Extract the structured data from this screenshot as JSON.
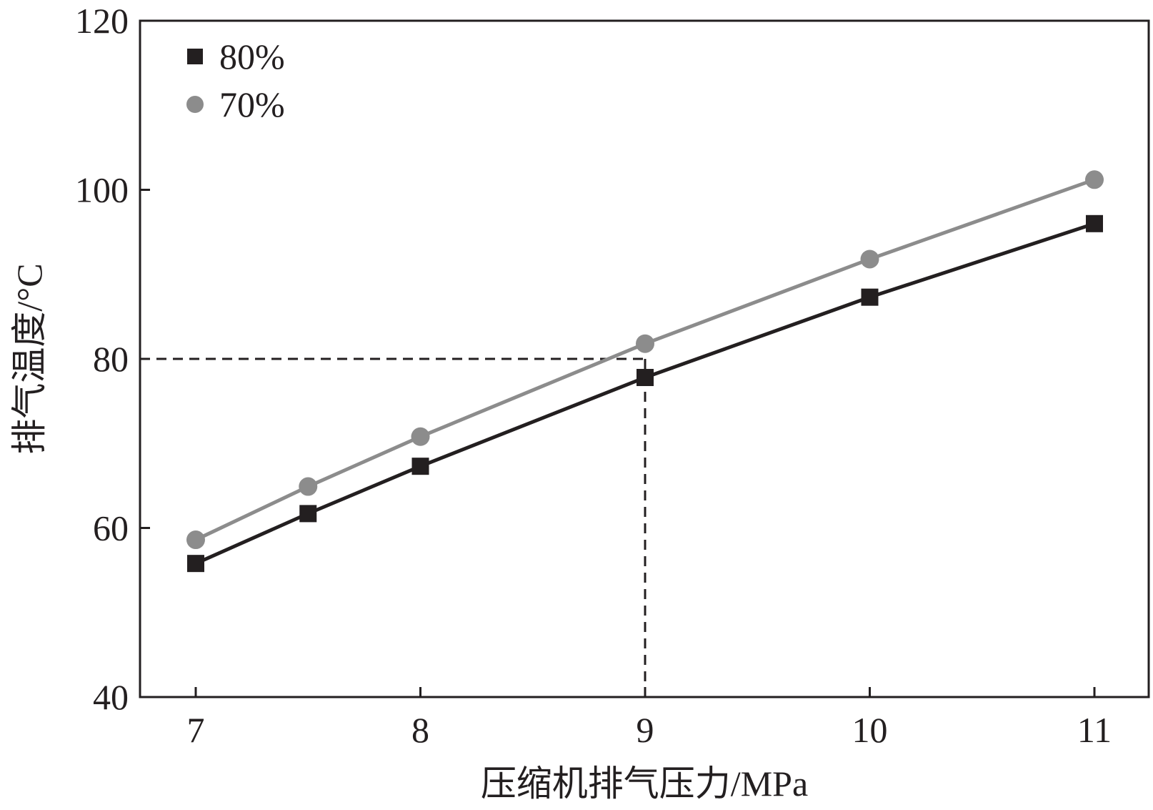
{
  "chart_data": {
    "type": "line",
    "title": "",
    "xlabel": "压缩机排气压力/MPa",
    "ylabel": "排气温度/°C",
    "xlim": [
      6.75,
      11.25
    ],
    "ylim": [
      40,
      120
    ],
    "x_ticks": [
      7,
      8,
      9,
      10,
      11
    ],
    "y_ticks": [
      40,
      60,
      80,
      100,
      120
    ],
    "x_tick_labels": [
      "7",
      "8",
      "9",
      "10",
      "11"
    ],
    "y_tick_labels": [
      "40",
      "60",
      "80",
      "100",
      "120"
    ],
    "grid": false,
    "legend_position": "top-left",
    "series": [
      {
        "name": "80%",
        "marker": "square",
        "color": "#231f20",
        "x": [
          7,
          7.5,
          8,
          9,
          10,
          11
        ],
        "y": [
          55.8,
          61.7,
          67.3,
          77.8,
          87.3,
          96
        ]
      },
      {
        "name": "70%",
        "marker": "circle",
        "color": "#8c8c8c",
        "x": [
          7,
          7.5,
          8,
          9,
          10,
          11
        ],
        "y": [
          58.6,
          64.9,
          70.8,
          81.8,
          91.8,
          101.2
        ]
      }
    ],
    "reference": {
      "x": 9,
      "y": 80
    }
  }
}
